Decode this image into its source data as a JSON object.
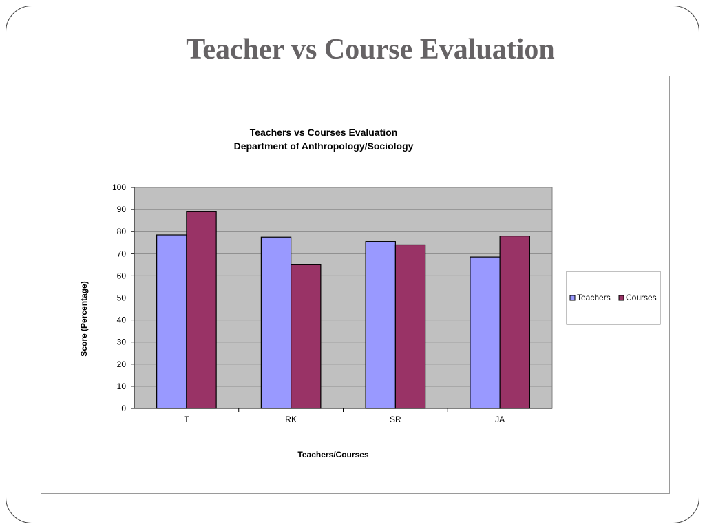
{
  "slide": {
    "title": "Teacher vs Course Evaluation"
  },
  "chart_data": {
    "type": "bar",
    "title": "Teachers vs Courses Evaluation",
    "subtitle": "Department of Anthropology/Sociology",
    "xlabel": "Teachers/Courses",
    "ylabel": "Score (Percentage)",
    "categories": [
      "T",
      "RK",
      "SR",
      "JA"
    ],
    "series": [
      {
        "name": "Teachers",
        "color": "#9999ff",
        "values": [
          78.5,
          77.5,
          75.5,
          68.5
        ]
      },
      {
        "name": "Courses",
        "color": "#993366",
        "values": [
          89,
          65,
          74,
          78
        ]
      }
    ],
    "ylim": [
      0,
      100
    ],
    "yticks": [
      0,
      10,
      20,
      30,
      40,
      50,
      60,
      70,
      80,
      90,
      100
    ],
    "grid": true,
    "plot_background": "#c0c0c0",
    "legend_position": "right"
  }
}
